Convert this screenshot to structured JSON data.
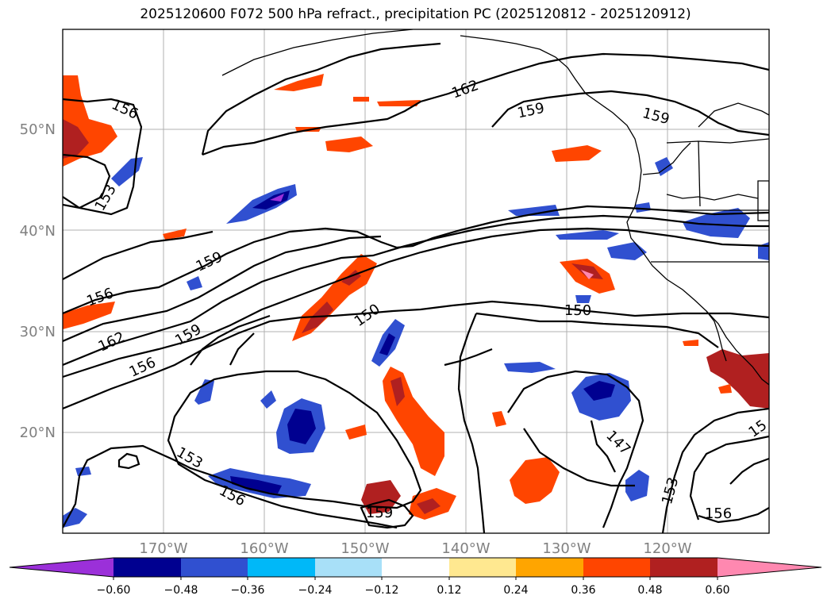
{
  "title": "2025120600 F072 500 hPa refract., precipitation PC (2025120812 - 2025120912)",
  "map": {
    "lat_labels": [
      "50°N",
      "40°N",
      "30°N",
      "20°N"
    ],
    "lon_labels": [
      "170°W",
      "160°W",
      "150°W",
      "140°W",
      "130°W",
      "120°W"
    ],
    "contour_labels": [
      "156",
      "153",
      "159",
      "162",
      "159",
      "159",
      "156",
      "162",
      "159",
      "156",
      "150",
      "150",
      "147",
      "153",
      "156",
      "153",
      "156",
      "159",
      "15"
    ]
  },
  "colorbar": {
    "ticks": [
      "−0.60",
      "−0.48",
      "−0.36",
      "−0.24",
      "−0.12",
      "0.12",
      "0.24",
      "0.36",
      "0.48",
      "0.60"
    ],
    "colors": [
      "#9b30d9",
      "#000090",
      "#3050d0",
      "#00b8f8",
      "#a8e0f8",
      "#ffffff",
      "#ffe890",
      "#ffa500",
      "#ff4500",
      "#b02020",
      "#ff88b0"
    ]
  }
}
